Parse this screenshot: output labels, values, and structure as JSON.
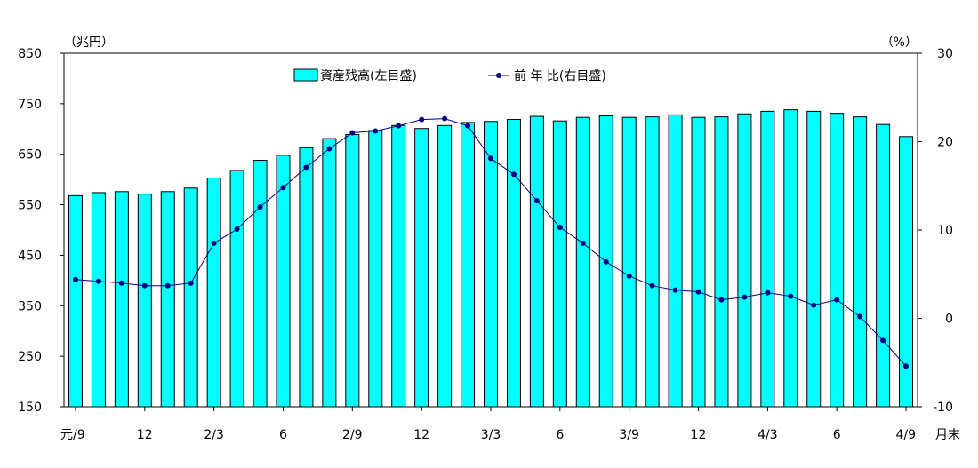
{
  "chart_data": {
    "type": "bar",
    "left_unit": "（兆円）",
    "right_unit": "（%）",
    "x_suffix": "月末",
    "x_tick_labels": [
      {
        "index": 0,
        "label": "元/9"
      },
      {
        "index": 3,
        "label": "12"
      },
      {
        "index": 6,
        "label": "2/3"
      },
      {
        "index": 9,
        "label": "6"
      },
      {
        "index": 12,
        "label": "2/9"
      },
      {
        "index": 15,
        "label": "12"
      },
      {
        "index": 18,
        "label": "3/3"
      },
      {
        "index": 21,
        "label": "6"
      },
      {
        "index": 24,
        "label": "3/9"
      },
      {
        "index": 27,
        "label": "12"
      },
      {
        "index": 30,
        "label": "4/3"
      },
      {
        "index": 33,
        "label": "6"
      },
      {
        "index": 36,
        "label": "4/9"
      }
    ],
    "left_axis": {
      "min": 150,
      "max": 850,
      "step": 100,
      "ticks": [
        "150",
        "250",
        "350",
        "450",
        "550",
        "650",
        "750",
        "850"
      ]
    },
    "right_axis": {
      "min": -10,
      "max": 30,
      "step": 10,
      "ticks": [
        "-10",
        "0",
        "10",
        "20",
        "30"
      ]
    },
    "series": [
      {
        "name": "資産残高(左目盛)",
        "type": "bar",
        "axis": "left",
        "color": "#00FFFF",
        "values": [
          568,
          574,
          576,
          571,
          576,
          583,
          603,
          618,
          638,
          648,
          663,
          681,
          689,
          697,
          707,
          701,
          707,
          713,
          715,
          719,
          725,
          716,
          723,
          726,
          723,
          724,
          728,
          723,
          724,
          730,
          735,
          738,
          735,
          731,
          724,
          709,
          685
        ]
      },
      {
        "name": "前 年 比(右目盛)",
        "type": "line",
        "axis": "right",
        "color": "#000080",
        "values": [
          4.4,
          4.2,
          4.0,
          3.7,
          3.7,
          4.0,
          8.5,
          10.1,
          12.6,
          14.8,
          17.1,
          19.2,
          21.0,
          21.2,
          21.8,
          22.5,
          22.6,
          21.8,
          18.1,
          16.3,
          13.3,
          10.3,
          8.5,
          6.4,
          4.8,
          3.7,
          3.2,
          3.0,
          2.1,
          2.4,
          2.9,
          2.5,
          1.5,
          2.1,
          0.2,
          -2.5,
          -5.4
        ]
      }
    ]
  }
}
